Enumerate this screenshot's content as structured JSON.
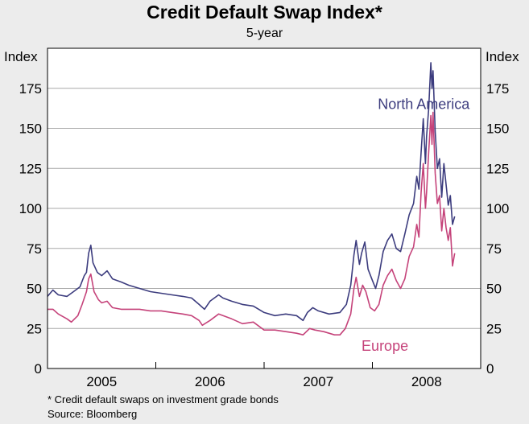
{
  "chart_data": {
    "type": "line",
    "title": "Credit Default Swap Index*",
    "subtitle": "5-year",
    "ylabel_left": "Index",
    "ylabel_right": "Index",
    "ylim": [
      0,
      200
    ],
    "yticks": [
      0,
      25,
      50,
      75,
      100,
      125,
      150,
      175
    ],
    "xlim": [
      2004.5,
      2008.5
    ],
    "xdividers": [
      2005.5,
      2006.5,
      2007.5
    ],
    "xtick_labels": [
      {
        "label": "2005",
        "x": 2005.0
      },
      {
        "label": "2006",
        "x": 2006.0
      },
      {
        "label": "2007",
        "x": 2007.0
      },
      {
        "label": "2008",
        "x": 2008.0
      }
    ],
    "grid": true,
    "series": [
      {
        "name": "North America",
        "color": "#3c3c7e",
        "points": [
          [
            2004.5,
            45
          ],
          [
            2004.55,
            49
          ],
          [
            2004.6,
            46
          ],
          [
            2004.68,
            45
          ],
          [
            2004.74,
            48
          ],
          [
            2004.8,
            51
          ],
          [
            2004.84,
            58
          ],
          [
            2004.86,
            60
          ],
          [
            2004.88,
            72
          ],
          [
            2004.9,
            77
          ],
          [
            2004.92,
            66
          ],
          [
            2004.96,
            60
          ],
          [
            2005.0,
            58
          ],
          [
            2005.05,
            61
          ],
          [
            2005.1,
            56
          ],
          [
            2005.18,
            54
          ],
          [
            2005.25,
            52
          ],
          [
            2005.35,
            50
          ],
          [
            2005.45,
            48
          ],
          [
            2005.55,
            47
          ],
          [
            2005.65,
            46
          ],
          [
            2005.75,
            45
          ],
          [
            2005.83,
            44
          ],
          [
            2005.9,
            40
          ],
          [
            2005.95,
            37
          ],
          [
            2006.0,
            42
          ],
          [
            2006.08,
            46
          ],
          [
            2006.12,
            44
          ],
          [
            2006.2,
            42
          ],
          [
            2006.3,
            40
          ],
          [
            2006.4,
            39
          ],
          [
            2006.5,
            35
          ],
          [
            2006.6,
            33
          ],
          [
            2006.7,
            34
          ],
          [
            2006.8,
            33
          ],
          [
            2006.86,
            30
          ],
          [
            2006.9,
            35
          ],
          [
            2006.95,
            38
          ],
          [
            2007.0,
            36
          ],
          [
            2007.1,
            34
          ],
          [
            2007.2,
            35
          ],
          [
            2007.26,
            40
          ],
          [
            2007.3,
            52
          ],
          [
            2007.33,
            71
          ],
          [
            2007.35,
            80
          ],
          [
            2007.38,
            65
          ],
          [
            2007.4,
            72
          ],
          [
            2007.43,
            79
          ],
          [
            2007.46,
            62
          ],
          [
            2007.5,
            55
          ],
          [
            2007.53,
            50
          ],
          [
            2007.56,
            58
          ],
          [
            2007.6,
            73
          ],
          [
            2007.64,
            80
          ],
          [
            2007.68,
            84
          ],
          [
            2007.72,
            75
          ],
          [
            2007.76,
            73
          ],
          [
            2007.8,
            84
          ],
          [
            2007.84,
            96
          ],
          [
            2007.88,
            103
          ],
          [
            2007.91,
            120
          ],
          [
            2007.93,
            112
          ],
          [
            2007.95,
            135
          ],
          [
            2007.97,
            156
          ],
          [
            2007.99,
            128
          ],
          [
            2008.0,
            145
          ],
          [
            2008.02,
            162
          ],
          [
            2008.04,
            191
          ],
          [
            2008.05,
            175
          ],
          [
            2008.06,
            186
          ],
          [
            2008.08,
            148
          ],
          [
            2008.1,
            125
          ],
          [
            2008.12,
            131
          ],
          [
            2008.14,
            107
          ],
          [
            2008.16,
            128
          ],
          [
            2008.18,
            115
          ],
          [
            2008.2,
            102
          ],
          [
            2008.22,
            108
          ],
          [
            2008.24,
            90
          ],
          [
            2008.26,
            95
          ]
        ]
      },
      {
        "name": "Europe",
        "color": "#c5437a",
        "points": [
          [
            2004.5,
            37
          ],
          [
            2004.55,
            37
          ],
          [
            2004.6,
            34
          ],
          [
            2004.68,
            31
          ],
          [
            2004.72,
            29
          ],
          [
            2004.78,
            33
          ],
          [
            2004.82,
            40
          ],
          [
            2004.86,
            48
          ],
          [
            2004.88,
            56
          ],
          [
            2004.9,
            59
          ],
          [
            2004.93,
            48
          ],
          [
            2004.97,
            43
          ],
          [
            2005.0,
            41
          ],
          [
            2005.05,
            42
          ],
          [
            2005.1,
            38
          ],
          [
            2005.18,
            37
          ],
          [
            2005.25,
            37
          ],
          [
            2005.35,
            37
          ],
          [
            2005.45,
            36
          ],
          [
            2005.55,
            36
          ],
          [
            2005.65,
            35
          ],
          [
            2005.75,
            34
          ],
          [
            2005.83,
            33
          ],
          [
            2005.9,
            30
          ],
          [
            2005.93,
            27
          ],
          [
            2006.0,
            30
          ],
          [
            2006.08,
            34
          ],
          [
            2006.12,
            33
          ],
          [
            2006.2,
            31
          ],
          [
            2006.3,
            28
          ],
          [
            2006.4,
            29
          ],
          [
            2006.5,
            24
          ],
          [
            2006.6,
            24
          ],
          [
            2006.7,
            23
          ],
          [
            2006.8,
            22
          ],
          [
            2006.86,
            21
          ],
          [
            2006.92,
            25
          ],
          [
            2006.97,
            24
          ],
          [
            2007.05,
            23
          ],
          [
            2007.15,
            21
          ],
          [
            2007.2,
            21
          ],
          [
            2007.25,
            25
          ],
          [
            2007.3,
            34
          ],
          [
            2007.33,
            50
          ],
          [
            2007.35,
            57
          ],
          [
            2007.38,
            45
          ],
          [
            2007.41,
            52
          ],
          [
            2007.44,
            48
          ],
          [
            2007.48,
            38
          ],
          [
            2007.52,
            36
          ],
          [
            2007.56,
            40
          ],
          [
            2007.6,
            52
          ],
          [
            2007.64,
            58
          ],
          [
            2007.68,
            62
          ],
          [
            2007.72,
            55
          ],
          [
            2007.76,
            50
          ],
          [
            2007.8,
            56
          ],
          [
            2007.84,
            70
          ],
          [
            2007.88,
            76
          ],
          [
            2007.91,
            90
          ],
          [
            2007.93,
            82
          ],
          [
            2007.95,
            110
          ],
          [
            2007.97,
            128
          ],
          [
            2007.99,
            100
          ],
          [
            2008.0,
            110
          ],
          [
            2008.02,
            135
          ],
          [
            2008.04,
            158
          ],
          [
            2008.05,
            140
          ],
          [
            2008.06,
            160
          ],
          [
            2008.08,
            122
          ],
          [
            2008.1,
            103
          ],
          [
            2008.12,
            108
          ],
          [
            2008.14,
            86
          ],
          [
            2008.16,
            100
          ],
          [
            2008.18,
            88
          ],
          [
            2008.2,
            80
          ],
          [
            2008.22,
            88
          ],
          [
            2008.24,
            64
          ],
          [
            2008.26,
            72
          ]
        ]
      }
    ],
    "series_labels": [
      {
        "text": "North America",
        "x": 2007.55,
        "y": 162
      },
      {
        "text": "Europe",
        "x": 2007.4,
        "y": 11
      }
    ],
    "footnote": "*  Credit default swaps on investment grade bonds",
    "source": "Source: Bloomberg"
  }
}
